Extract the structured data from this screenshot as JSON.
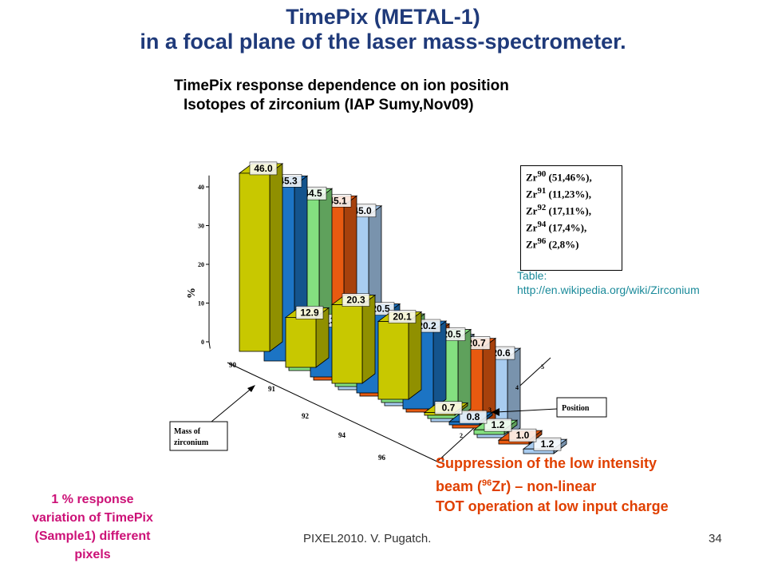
{
  "slide": {
    "title_line1": "TimePix (METAL-1)",
    "title_line2": "in a focal plane of the laser mass-spectrometer.",
    "footer_left": "PIXEL2010. V. Pugatch.",
    "footer_right": "34"
  },
  "chart_data": {
    "type": "bar3d",
    "title_line1": "TimePix response dependence on ion position",
    "title_line2": "Isotopes of zirconium (IAP Sumy,Nov09)",
    "zlabel": "%",
    "zticks": [
      "0",
      "10",
      "20",
      "30",
      "40"
    ],
    "zlim": [
      0,
      45
    ],
    "mass_axis": [
      "90",
      "91",
      "92",
      "94",
      "96"
    ],
    "position_axis": [
      "1",
      "2",
      "3",
      "4",
      "5"
    ],
    "series": [
      {
        "mass": "90",
        "values": [
          46.0,
          12.9,
          20.3,
          20.1,
          0.7
        ]
      },
      {
        "mass": "91",
        "values": [
          45.3,
          13.3,
          20.5,
          20.2,
          0.8
        ]
      },
      {
        "mass": "92",
        "values": [
          44.5,
          13.4,
          20.4,
          20.5,
          1.2
        ]
      },
      {
        "mass": "94",
        "values": [
          45.1,
          12.8,
          20.3,
          20.7,
          1.0
        ]
      },
      {
        "mass": "96",
        "values": [
          45.0,
          12.8,
          20.1,
          20.6,
          1.2
        ]
      }
    ],
    "annotations": {
      "mass_label_line1": "Mass of",
      "mass_label_line2": "zirconium",
      "position_label": "Position"
    }
  },
  "abundance_table": {
    "rows": [
      {
        "element": "Zr",
        "mass": "90",
        "value": "(51,46%),"
      },
      {
        "element": "Zr",
        "mass": "91",
        "value": "(11,23%),"
      },
      {
        "element": "Zr",
        "mass": "92",
        "value": "(17,11%),"
      },
      {
        "element": "Zr",
        "mass": "94",
        "value": "(17,4%),"
      },
      {
        "element": "Zr",
        "mass": "96",
        "value": "(2,8%)"
      }
    ],
    "source_line1": "Table:",
    "source_line2": "http://en.wikipedia.org/wiki/Zirconium"
  },
  "notes": {
    "suppression_line1": "Suppression of the low intensity",
    "suppression_line2_pre": "beam (",
    "suppression_line2_sup": "96",
    "suppression_line2_post": "Zr) – non-linear",
    "suppression_line3": "TOT operation at low input charge",
    "variation_line1": "1 % response",
    "variation_line2": "variation of TimePix",
    "variation_line3": "(Sample1) different",
    "variation_line4": "pixels"
  },
  "colors": {
    "title": "#1f3a7a",
    "series": [
      "#c8c800",
      "#1c74c4",
      "#84e080",
      "#e85a10",
      "#a8ccf0"
    ],
    "source_text": "#1a8a9a",
    "suppression_text": "#e04000",
    "variation_text": "#cc1177"
  }
}
